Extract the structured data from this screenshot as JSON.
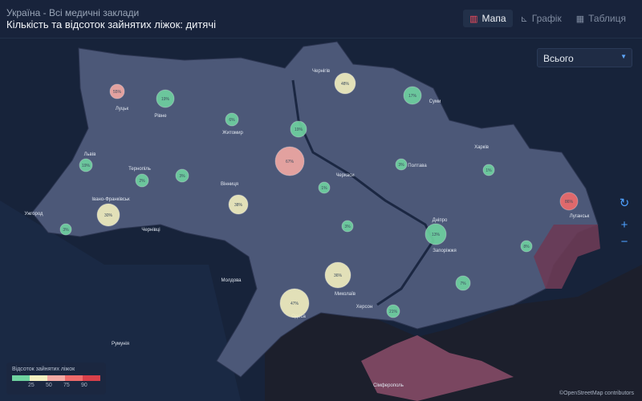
{
  "header": {
    "subtitle": "Україна - Всі медичні заклади",
    "title": "Кількість та відсоток зайнятих ліжок: дитячі"
  },
  "tabs": [
    {
      "label": "Мапа",
      "icon": "map-icon",
      "active": true
    },
    {
      "label": "Графік",
      "icon": "chart-icon",
      "active": false
    },
    {
      "label": "Таблиця",
      "icon": "table-icon",
      "active": false
    }
  ],
  "filter": {
    "selected": "Всього"
  },
  "controls": {
    "reset": "reset-icon",
    "zoom_in": "+",
    "zoom_out": "−"
  },
  "legend": {
    "title": "Відсоток зайнятих ліжок",
    "ticks": [
      "25",
      "50",
      "75",
      "90"
    ],
    "colors": [
      "#6fd3a0",
      "#f3efc0",
      "#f3a9a4",
      "#ef6b6b",
      "#d8404a"
    ]
  },
  "attribution": "©OpenStreetMap contributors",
  "cities": [
    "Луцьк",
    "Рівне",
    "Житомир",
    "Чернігів",
    "Суми",
    "Львів",
    "Тернопіль",
    "Вінниця",
    "Черкаси",
    "Полтава",
    "Харків",
    "Івано-Франківськ",
    "Ужгород",
    "Чернівці",
    "Дніпро",
    "Луганськ",
    "Запоріжжя",
    "Миколаїв",
    "Херсон",
    "Одеса",
    "Сімферополь",
    "Молдова",
    "Румунія"
  ],
  "bubbles": [
    {
      "region": "Волинська",
      "value": "55%"
    },
    {
      "region": "Рівненська",
      "value": "19%"
    },
    {
      "region": "Житомирська",
      "value": "6%"
    },
    {
      "region": "Київ",
      "value": "19%"
    },
    {
      "region": "Чернігівська",
      "value": "48%"
    },
    {
      "region": "Сумська",
      "value": "17%"
    },
    {
      "region": "Львівська",
      "value": "19%"
    },
    {
      "region": "Тернопільська",
      "value": "2%"
    },
    {
      "region": "Хмельницька",
      "value": "3%"
    },
    {
      "region": "Київська",
      "value": "67%"
    },
    {
      "region": "Вінницька",
      "value": "38%"
    },
    {
      "region": "Черкаська",
      "value": "1%"
    },
    {
      "region": "Полтавська",
      "value": "3%"
    },
    {
      "region": "Харківська",
      "value": "1%"
    },
    {
      "region": "Луганська",
      "value": "86%"
    },
    {
      "region": "Івано-Франківська",
      "value": "30%"
    },
    {
      "region": "Закарпатська",
      "value": "3%"
    },
    {
      "region": "Кіровоградська",
      "value": "3%"
    },
    {
      "region": "Дніпропетровська",
      "value": "13%"
    },
    {
      "region": "Донецька",
      "value": "8%"
    },
    {
      "region": "Запорізька",
      "value": "7%"
    },
    {
      "region": "Миколаївська",
      "value": "36%"
    },
    {
      "region": "Одеська",
      "value": "47%"
    },
    {
      "region": "Херсонська",
      "value": "21%"
    }
  ]
}
